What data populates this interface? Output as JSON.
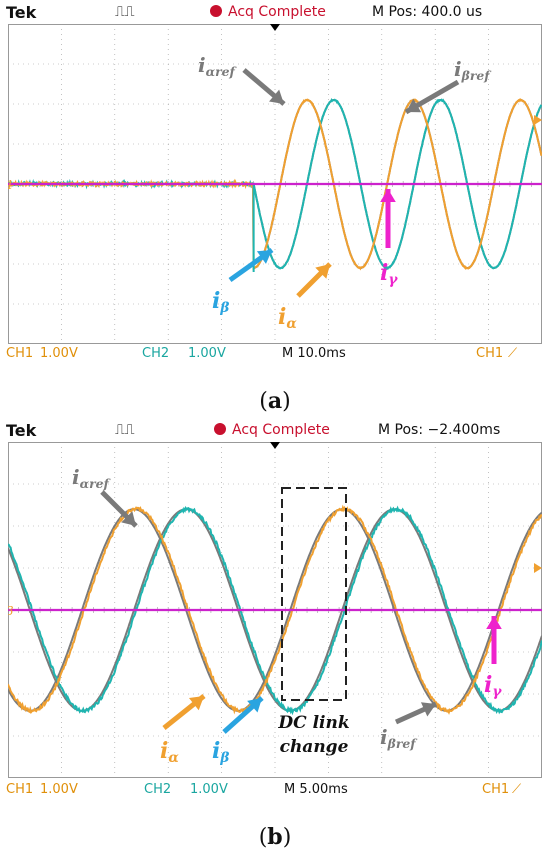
{
  "colors": {
    "ch1": "#f0a030",
    "ch2": "#1fb5b0",
    "ref": "#7a7a7a",
    "gamma": "#cc22cc",
    "grid": "#999999",
    "ibeta_arrow": "#2aa4e0",
    "ialpha_arrow": "#f0a030",
    "igamma_arrow": "#ee22cc"
  },
  "panels": [
    {
      "id": "a",
      "header": {
        "brand": "Tek",
        "trigger_glyph": "⎍⎍",
        "status": "Acq Complete",
        "mpos_label": "M Pos: 400.0 us"
      },
      "footer": {
        "ch1_label": "CH1",
        "ch1_scale": "1.00V",
        "ch2_label": "CH2",
        "ch2_scale": "1.00V",
        "timebase": "M 10.0ms",
        "trig_source": "CH1"
      },
      "caption": "(a)",
      "labels": {
        "ialpha_ref": "iαref",
        "ibeta_ref": "iβref",
        "ibeta": "iβ",
        "ialpha": "iα",
        "igamma": "iγ"
      },
      "chart_data": {
        "type": "line",
        "x_unit": "ms",
        "xlim": [
          -50,
          50
        ],
        "ylim": [
          -4,
          4
        ],
        "grid": true,
        "series": [
          {
            "name": "iα",
            "color": "#f0a030",
            "pre": 0,
            "start": -4,
            "amplitude": 2.1,
            "period": 20,
            "phase_deg": 0
          },
          {
            "name": "iβ",
            "color": "#1fb5b0",
            "pre": 0,
            "start": -4,
            "amplitude": 2.1,
            "period": 20,
            "phase_deg": -90
          },
          {
            "name": "iγ",
            "color": "#cc22cc",
            "constant": 0
          }
        ]
      }
    },
    {
      "id": "b",
      "header": {
        "brand": "Tek",
        "trigger_glyph": "⎍⎍",
        "status": "Acq Complete",
        "mpos_label": "M Pos: −2.400ms"
      },
      "footer": {
        "ch1_label": "CH1",
        "ch1_scale": "1.00V",
        "ch2_label": "CH2",
        "ch2_scale": "1.00V",
        "timebase": "M 5.00ms",
        "trig_source": "CH1"
      },
      "caption": "(b)",
      "labels": {
        "ialpha_ref": "iαref",
        "ibeta_ref": "iβref",
        "ibeta": "iβ",
        "ialpha": "iα",
        "igamma": "iγ",
        "dc_link": "DC link",
        "dc_change": "change"
      },
      "chart_data": {
        "type": "line",
        "x_unit": "ms",
        "xlim": [
          -25,
          25
        ],
        "ylim": [
          -4,
          4
        ],
        "grid": true,
        "series": [
          {
            "name": "iα",
            "color": "#f0a030",
            "amplitude": 2.4,
            "period": 19.5,
            "phase_deg": 0
          },
          {
            "name": "iβ",
            "color": "#1fb5b0",
            "amplitude": 2.4,
            "period": 19.5,
            "phase_deg": -90
          },
          {
            "name": "iγ",
            "color": "#cc22cc",
            "constant": 0
          }
        ]
      }
    }
  ]
}
